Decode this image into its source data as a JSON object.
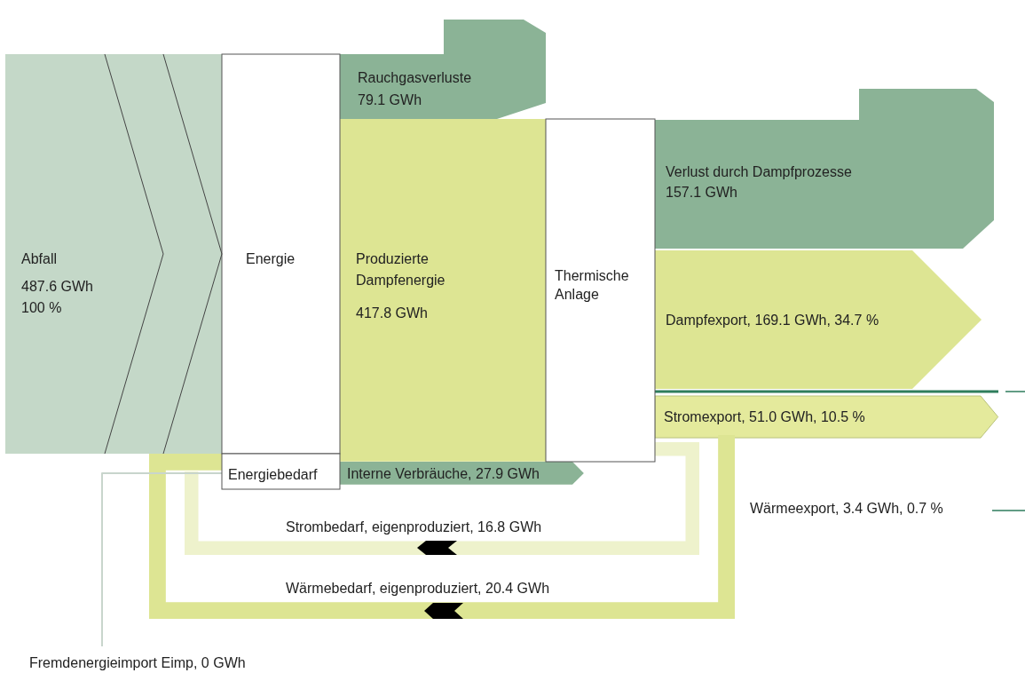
{
  "chart_data": {
    "type": "other",
    "categories": [
      "Abfall",
      "Rauchgasverluste",
      "Produzierte Dampfenergie",
      "Verlust durch Dampfprozesse",
      "Dampfexport",
      "Stromexport",
      "Wärmeexport",
      "Interne Verbräuche",
      "Strombedarf, eigenproduziert",
      "Wärmebedarf, eigenproduziert",
      "Fremdenergieimport Eimp"
    ],
    "values": [
      487.6,
      79.1,
      417.8,
      157.1,
      169.1,
      51.0,
      3.4,
      27.9,
      16.8,
      20.4,
      0
    ],
    "value_labels": [
      "487.6 GWh\n100 %",
      "79.1 GWh",
      "417.8 GWh",
      "157.1 GWh",
      ", 169.1 GWh, 34.7 %",
      ", 51.0 GWh, 10.5 %",
      ", 3.4 GWh, 0.7 %",
      ", 27.9 GWh",
      ", 16.8 GWh",
      ", 20.4 GWh",
      ", 0 GWh"
    ],
    "colors": [
      "#c4d8c8",
      "#8bb396",
      "#dde593",
      "#8bb396",
      "#dde593",
      "#e4ea9c",
      "#2e7d5c",
      "#8bb396",
      "#eef2cc",
      "#dde593",
      "#c8d5cc"
    ],
    "annotations": [
      "Energie",
      "Thermische Anlage",
      "Energiebedarf"
    ]
  }
}
